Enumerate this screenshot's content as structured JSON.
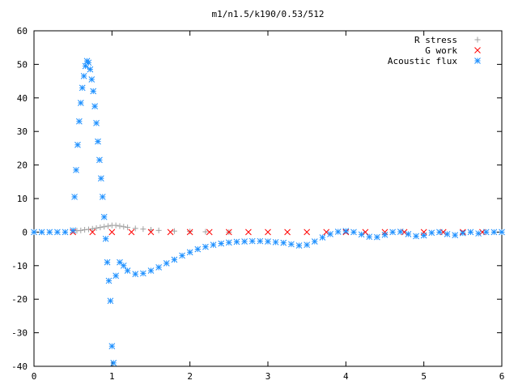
{
  "chart_data": {
    "type": "scatter",
    "title": "m1/n1.5/k190/0.53/512",
    "xlabel": "",
    "ylabel": "",
    "xlim": [
      0,
      6
    ],
    "ylim": [
      -40,
      60
    ],
    "xticks": [
      0,
      1,
      2,
      3,
      4,
      5,
      6
    ],
    "yticks": [
      -40,
      -30,
      -20,
      -10,
      0,
      10,
      20,
      30,
      40,
      50,
      60
    ],
    "legend_position": "top-right",
    "grid": false,
    "series": [
      {
        "name": "R stress",
        "marker": "plus",
        "color": "#a0a0a0",
        "x": [
          0.55,
          0.6,
          0.65,
          0.7,
          0.75,
          0.8,
          0.85,
          0.9,
          0.95,
          1.0,
          1.05,
          1.1,
          1.15,
          1.2,
          1.3,
          1.4,
          1.5,
          1.6,
          1.8,
          2.0,
          2.2,
          2.5
        ],
        "y": [
          0.4,
          0.5,
          0.7,
          0.8,
          1.0,
          1.2,
          1.4,
          1.6,
          1.8,
          2.0,
          2.0,
          1.8,
          1.6,
          1.4,
          1.1,
          0.9,
          0.7,
          0.5,
          0.3,
          0.2,
          0.1,
          0.0
        ]
      },
      {
        "name": "G work",
        "marker": "cross",
        "color": "#ff0000",
        "x": [
          0.5,
          0.75,
          1.0,
          1.25,
          1.5,
          1.75,
          2.0,
          2.25,
          2.5,
          2.75,
          3.0,
          3.25,
          3.5,
          3.75,
          4.0,
          4.25,
          4.5,
          4.75,
          5.0,
          5.25,
          5.5,
          5.75
        ],
        "y": [
          0.0,
          0.0,
          0.0,
          0.0,
          0.0,
          0.0,
          0.0,
          0.0,
          0.0,
          0.0,
          0.0,
          0.0,
          0.0,
          0.0,
          0.0,
          0.0,
          0.0,
          0.0,
          0.0,
          0.0,
          0.0,
          0.0
        ]
      },
      {
        "name": "Acoustic flux",
        "marker": "star",
        "color": "#1e90ff",
        "x": [
          0.0,
          0.1,
          0.2,
          0.3,
          0.4,
          0.5,
          0.52,
          0.54,
          0.56,
          0.58,
          0.6,
          0.62,
          0.64,
          0.66,
          0.68,
          0.7,
          0.72,
          0.74,
          0.76,
          0.78,
          0.8,
          0.82,
          0.84,
          0.86,
          0.88,
          0.9,
          0.92,
          0.94,
          0.96,
          0.98,
          1.0,
          1.02,
          1.05,
          1.1,
          1.15,
          1.2,
          1.3,
          1.4,
          1.5,
          1.6,
          1.7,
          1.8,
          1.9,
          2.0,
          2.1,
          2.2,
          2.3,
          2.4,
          2.5,
          2.6,
          2.7,
          2.8,
          2.9,
          3.0,
          3.1,
          3.2,
          3.3,
          3.4,
          3.5,
          3.6,
          3.7,
          3.8,
          3.9,
          4.0,
          4.1,
          4.2,
          4.3,
          4.4,
          4.5,
          4.6,
          4.7,
          4.8,
          4.9,
          5.0,
          5.1,
          5.2,
          5.3,
          5.4,
          5.5,
          5.6,
          5.7,
          5.8,
          5.9,
          6.0
        ],
        "y": [
          0.0,
          0.0,
          0.0,
          0.0,
          0.0,
          0.5,
          10.5,
          18.5,
          26.0,
          33.0,
          38.5,
          43.0,
          46.5,
          49.5,
          51.0,
          50.5,
          48.5,
          45.5,
          42.0,
          37.5,
          32.5,
          27.0,
          21.5,
          16.0,
          10.5,
          4.5,
          -2.0,
          -9.0,
          -14.5,
          -20.5,
          -34.0,
          -39.0,
          -13.0,
          -9.0,
          -10.0,
          -11.5,
          -12.5,
          -12.3,
          -11.5,
          -10.5,
          -9.3,
          -8.2,
          -7.0,
          -6.0,
          -5.1,
          -4.4,
          -3.8,
          -3.4,
          -3.1,
          -2.9,
          -2.8,
          -2.7,
          -2.7,
          -2.8,
          -3.0,
          -3.2,
          -3.6,
          -4.0,
          -3.8,
          -2.8,
          -1.6,
          -0.6,
          0.1,
          0.3,
          0.0,
          -0.7,
          -1.4,
          -1.5,
          -0.8,
          0.0,
          0.1,
          -0.6,
          -1.2,
          -1.0,
          -0.2,
          0.0,
          -0.6,
          -0.9,
          -0.3,
          0.0,
          -0.4,
          0.0,
          0.0,
          0.0
        ]
      }
    ]
  }
}
